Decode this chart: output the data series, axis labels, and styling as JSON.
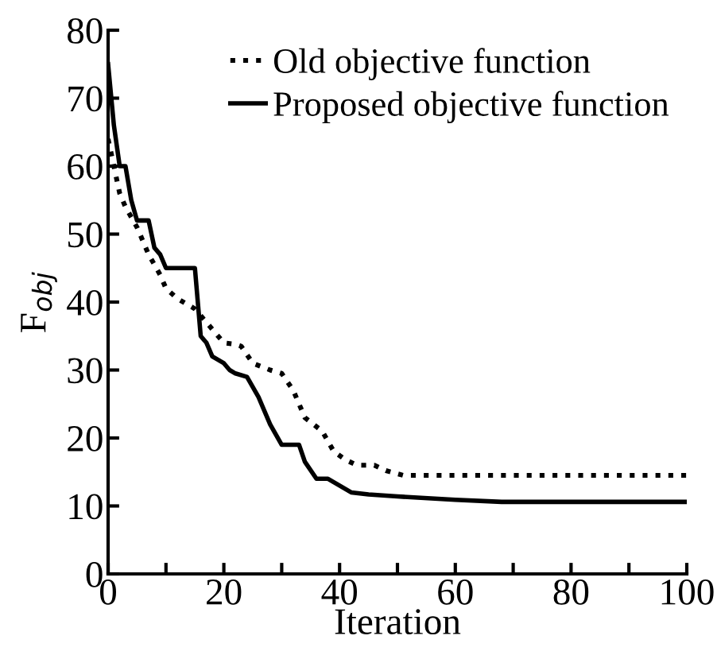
{
  "chart_data": {
    "type": "line",
    "xlabel": "Iteration",
    "ylabel": "F$_{obj}$",
    "xlim": [
      0,
      100
    ],
    "ylim": [
      0,
      80
    ],
    "xticks": [
      0,
      {
        "value": 10,
        "label": null
      },
      20,
      {
        "value": 30,
        "label": null
      },
      40,
      {
        "value": 50,
        "label": null
      },
      60,
      {
        "value": 70,
        "label": null
      },
      80,
      {
        "value": 90,
        "label": null
      },
      100
    ],
    "yticks": [
      0,
      10,
      20,
      30,
      40,
      50,
      60,
      70,
      80
    ],
    "grid": false,
    "legend": "top right",
    "marker": "none",
    "series": [
      {
        "name": "Old objective function",
        "color": "#000000",
        "line_style": "dotted",
        "x": [
          0,
          1,
          2,
          3,
          5,
          7,
          9,
          10,
          12,
          15,
          16,
          18,
          20,
          22,
          23,
          25,
          28,
          30,
          32,
          34,
          37,
          39,
          41,
          43,
          46,
          48,
          51,
          100
        ],
        "values": [
          64,
          60,
          56,
          54,
          51,
          47,
          44,
          42,
          40.5,
          39,
          38,
          36,
          34,
          33.8,
          33.5,
          31,
          30,
          29.5,
          27,
          23,
          21,
          18,
          16.8,
          16,
          16,
          15.2,
          14.5,
          14.5
        ]
      },
      {
        "name": "Proposed objective function",
        "color": "#000000",
        "line_style": "solid",
        "x": [
          0,
          1,
          2,
          3,
          4,
          5,
          7,
          8,
          9,
          10,
          15,
          16,
          17,
          18,
          20,
          21,
          22,
          24,
          26,
          28,
          30,
          33,
          34,
          36,
          38,
          39,
          40,
          42,
          45,
          50,
          60,
          68,
          100
        ],
        "values": [
          75,
          66,
          60,
          60,
          55,
          52,
          52,
          48,
          47,
          45,
          45,
          35,
          34,
          32,
          31,
          30,
          29.5,
          29,
          26,
          22,
          19,
          19,
          16.5,
          14,
          14,
          13.5,
          13,
          12,
          11.7,
          11.4,
          10.9,
          10.6,
          10.6
        ]
      }
    ]
  }
}
